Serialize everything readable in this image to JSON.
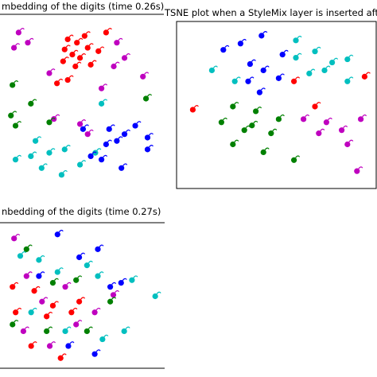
{
  "chart_data": [
    {
      "type": "scatter",
      "title": "mbedding of the digits (time 0.26s)",
      "xlim": [
        0,
        100
      ],
      "ylim": [
        0,
        100
      ],
      "series": [
        {
          "color": "#ff0000",
          "x": [
            66,
            52,
            41,
            47,
            54,
            39,
            61,
            44,
            49,
            38,
            56,
            46,
            41,
            34
          ],
          "y": [
            93,
            91,
            89,
            87,
            84,
            83,
            82,
            80,
            78,
            76,
            74,
            73,
            65,
            63
          ]
        },
        {
          "color": "#bf00bf",
          "x": [
            6,
            15,
            73,
            78,
            71,
            90,
            29,
            32,
            49,
            54,
            63,
            9
          ],
          "y": [
            84,
            87,
            87,
            78,
            73,
            67,
            69,
            42,
            39,
            33,
            60,
            93
          ]
        },
        {
          "color": "#008000",
          "x": [
            5,
            4,
            17,
            7,
            92,
            29
          ],
          "y": [
            62,
            44,
            51,
            38,
            54,
            40
          ]
        },
        {
          "color": "#00bfbf",
          "x": [
            7,
            20,
            29,
            39,
            24,
            37,
            59,
            49,
            63,
            17
          ],
          "y": [
            18,
            29,
            22,
            24,
            13,
            9,
            22,
            15,
            51,
            20
          ]
        },
        {
          "color": "#0000ff",
          "x": [
            51,
            68,
            73,
            78,
            85,
            93,
            93,
            63,
            76,
            66,
            56
          ],
          "y": [
            36,
            36,
            29,
            33,
            38,
            31,
            24,
            18,
            13,
            27,
            20
          ]
        }
      ]
    },
    {
      "type": "scatter",
      "title": "TSNE plot when a StyleMix layer is inserted after th",
      "xlim": [
        0,
        100
      ],
      "ylim": [
        0,
        100
      ],
      "series": [
        {
          "color": "#0000ff",
          "x": [
            42,
            31,
            53,
            22,
            36,
            43,
            35,
            51,
            41
          ],
          "y": [
            94,
            89,
            82,
            85,
            76,
            72,
            65,
            67,
            58
          ]
        },
        {
          "color": "#00bfbf",
          "x": [
            60,
            70,
            79,
            87,
            67,
            75,
            16,
            28,
            87,
            60
          ],
          "y": [
            91,
            84,
            77,
            79,
            70,
            72,
            72,
            65,
            65,
            80
          ]
        },
        {
          "color": "#ff0000",
          "x": [
            6,
            59,
            70,
            96
          ],
          "y": [
            47,
            65,
            49,
            68
          ]
        },
        {
          "color": "#008000",
          "x": [
            27,
            39,
            21,
            33,
            47,
            27,
            43,
            59,
            37,
            51
          ],
          "y": [
            49,
            46,
            39,
            34,
            32,
            25,
            20,
            15,
            37,
            41
          ]
        },
        {
          "color": "#bf00bf",
          "x": [
            64,
            76,
            84,
            94,
            72,
            92,
            87
          ],
          "y": [
            41,
            39,
            34,
            41,
            32,
            8,
            25
          ]
        }
      ]
    },
    {
      "type": "scatter",
      "title": "nbedding of the digits (time 0.27s)",
      "xlim": [
        0,
        100
      ],
      "ylim": [
        0,
        100
      ],
      "series": [
        {
          "color": "#bf00bf",
          "x": [
            6,
            14,
            24,
            39,
            46,
            12,
            29,
            58,
            70
          ],
          "y": [
            93,
            65,
            46,
            57,
            29,
            24,
            13,
            38,
            51
          ]
        },
        {
          "color": "#00bfbf",
          "x": [
            10,
            22,
            34,
            53,
            60,
            82,
            97,
            17,
            39,
            63,
            77
          ],
          "y": [
            80,
            77,
            68,
            73,
            65,
            62,
            50,
            38,
            24,
            18,
            24
          ]
        },
        {
          "color": "#ff0000",
          "x": [
            5,
            19,
            31,
            48,
            7,
            27,
            43,
            17,
            36
          ],
          "y": [
            57,
            54,
            43,
            46,
            38,
            35,
            38,
            13,
            4
          ]
        },
        {
          "color": "#008000",
          "x": [
            14,
            31,
            46,
            68,
            27,
            53,
            5
          ],
          "y": [
            85,
            60,
            62,
            46,
            24,
            24,
            29
          ]
        },
        {
          "color": "#0000ff",
          "x": [
            34,
            48,
            60,
            68,
            75,
            22,
            41,
            58
          ],
          "y": [
            96,
            79,
            85,
            57,
            60,
            65,
            13,
            7
          ]
        }
      ]
    }
  ]
}
